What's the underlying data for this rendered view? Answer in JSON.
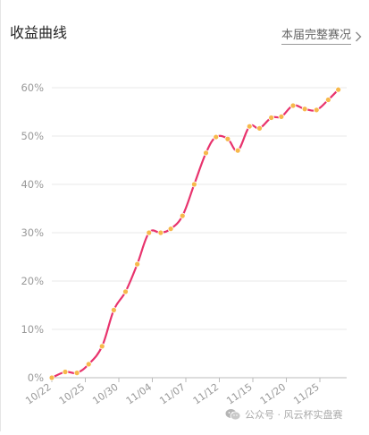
{
  "header": {
    "title": "收益曲线",
    "more_label": "本届完整赛况"
  },
  "watermark": {
    "text": "公众号 · 风云杯实盘赛"
  },
  "colors": {
    "line": "#e8336d",
    "marker_fill": "#f7b84b",
    "marker_stroke": "#ffffff",
    "grid": "#e8e8e8",
    "axis_text": "#999999",
    "axis": "#bbbbbb"
  },
  "chart_data": {
    "type": "line",
    "title": "",
    "xlabel": "",
    "ylabel": "",
    "ylim": [
      0,
      60
    ],
    "y_ticks": [
      "0%",
      "10%",
      "20%",
      "30%",
      "40%",
      "50%",
      "60%"
    ],
    "y_tick_values": [
      0,
      10,
      20,
      30,
      40,
      50,
      60
    ],
    "x_ticks": [
      "10/22",
      "10/25",
      "10/30",
      "11/04",
      "11/07",
      "11/12",
      "11/15",
      "11/20",
      "11/25"
    ],
    "x_tick_positions": [
      0,
      2,
      4,
      6,
      8,
      10,
      12,
      14,
      16
    ],
    "x_range": [
      0,
      17.6
    ],
    "grid": true,
    "series": [
      {
        "x": [
          0,
          0.8,
          1.5,
          2.2,
          3.0,
          3.7,
          4.4,
          5.1,
          5.8,
          6.5,
          7.1,
          7.8,
          8.5,
          9.2,
          9.8,
          10.5,
          11.1,
          11.8,
          12.4,
          13.1,
          13.7,
          14.4,
          15.1,
          15.8,
          16.5,
          17.1
        ],
        "y": [
          0,
          1.2,
          1.0,
          2.8,
          6.5,
          14.0,
          17.8,
          23.5,
          30.0,
          30.0,
          30.8,
          33.5,
          40.0,
          46.5,
          49.8,
          49.4,
          47.0,
          52.0,
          51.6,
          53.8,
          54.0,
          56.3,
          55.6,
          55.4,
          57.5,
          59.6
        ]
      }
    ]
  }
}
